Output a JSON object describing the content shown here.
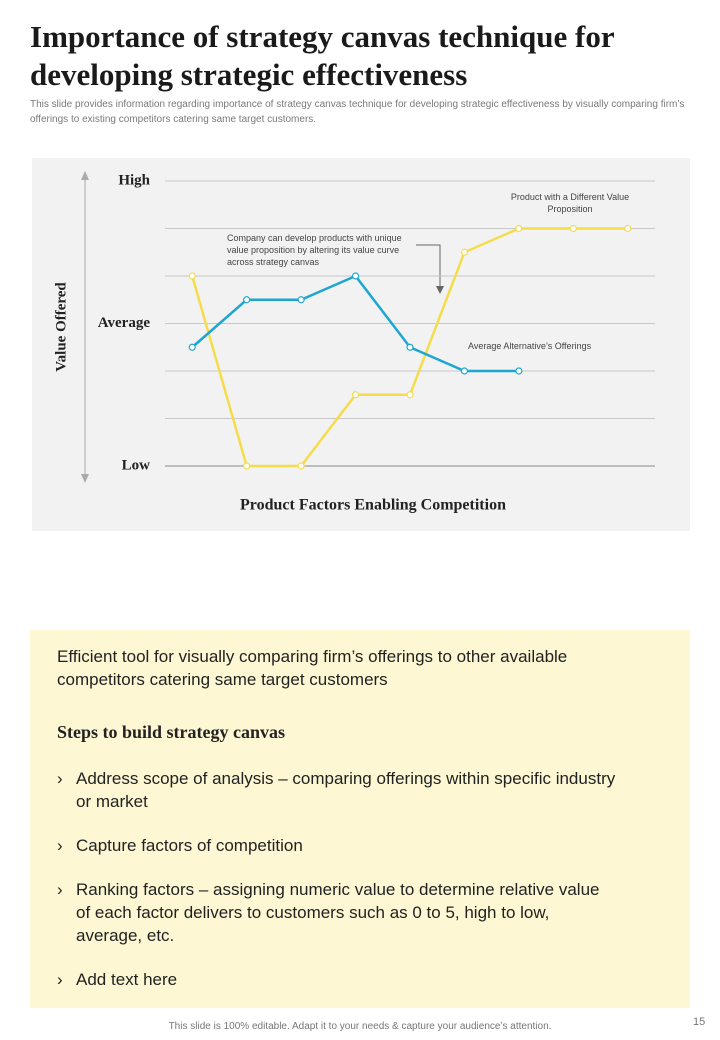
{
  "title": "Importance of strategy canvas technique for developing strategic effectiveness",
  "subtitle": "This slide provides information regarding importance of strategy canvas technique for developing strategic effectiveness by visually comparing firm’s offerings to existing competitors catering same target customers.",
  "chart_data": {
    "type": "line",
    "y_label": "Value Offered",
    "x_label": "Product Factors Enabling Competition",
    "categories": [
      null,
      null,
      null,
      null,
      null,
      null,
      null,
      null,
      null
    ],
    "series": [
      {
        "name": "Product with a Different Value Proposition",
        "color": "#f5dc4b",
        "values": [
          4,
          0,
          0,
          1.5,
          1.5,
          4.5,
          5,
          5,
          5
        ]
      },
      {
        "name": "Average Alternative’s Offerings",
        "color": "#1ea6d3",
        "values": [
          2.5,
          3.5,
          3.5,
          4,
          2.5,
          2,
          2,
          null,
          null
        ]
      }
    ],
    "ylim": [
      0,
      6
    ],
    "yticks": [
      {
        "value": 0,
        "label": "Low"
      },
      {
        "value": 3,
        "label": "Average"
      },
      {
        "value": 6,
        "label": "High"
      }
    ],
    "minor_yticks": [
      1,
      2,
      4,
      5
    ],
    "grid": true,
    "annotation": "Company can develop products with unique value proposition by altering its value curve across strategy canvas"
  },
  "box": {
    "intro": "Efficient tool for visually comparing firm’s offerings to other available competitors catering same target customers",
    "heading": "Steps to build strategy canvas",
    "bullets": [
      "Address scope of analysis – comparing offerings within specific industry or market",
      "Capture factors of competition",
      "Ranking factors – assigning numeric value to determine relative value of each factor delivers to customers such as 0 to 5, high to low, average, etc.",
      "Add text here"
    ]
  },
  "footer": "This slide is 100% editable. Adapt it to your needs & capture your audience’s attention.",
  "page_number": "15"
}
